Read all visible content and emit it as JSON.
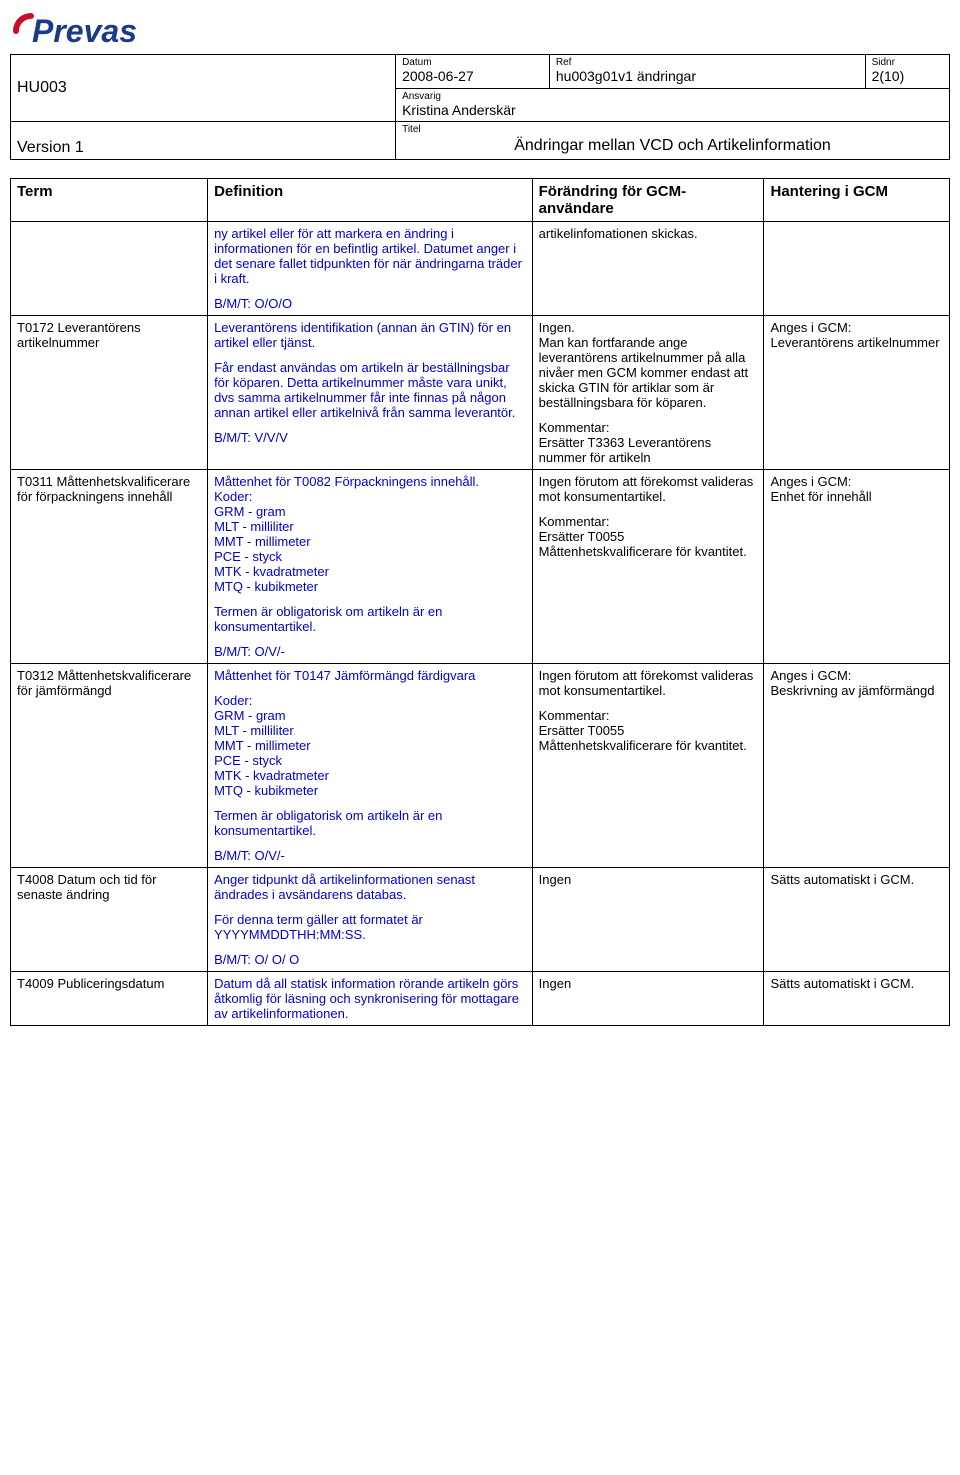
{
  "logo": {
    "text": "Prevas",
    "color": "#1a3a8a",
    "accent": "#c8102e"
  },
  "header": {
    "labels": {
      "datum": "Datum",
      "ref": "Ref",
      "sidnr": "Sidnr",
      "ansvarig": "Ansvarig",
      "titel": "Titel"
    },
    "code": "HU003",
    "datum": "2008-06-27",
    "ref": "hu003g01v1 ändringar",
    "sidnr": "2(10)",
    "ansvarig": "Kristina Anderskär",
    "version": "Version 1",
    "titel": "Ändringar mellan VCD och Artikelinformation"
  },
  "table": {
    "headers": {
      "term": "Term",
      "definition": "Definition",
      "forandring": "Förändring för GCM-användare",
      "hantering": "Hantering i GCM"
    },
    "rows": [
      {
        "term": "",
        "definition_parts": [
          "ny artikel eller för att markera en ändring i informationen för en befintlig artikel. Datumet anger i det senare fallet tidpunkten för när ändringarna träder i kraft.",
          "B/M/T: O/O/O"
        ],
        "forandring_parts": [
          "artikelinfomationen skickas."
        ],
        "hantering": ""
      },
      {
        "term": "T0172 Leverantörens artikelnummer",
        "definition_parts": [
          "Leverantörens identifikation (annan än GTIN) för en artikel eller tjänst.",
          "Får endast användas om artikeln är beställningsbar för köparen. Detta artikelnummer måste vara unikt, dvs samma artikelnummer får inte finnas på någon annan artikel eller artikelnivå från samma leverantör.",
          "B/M/T: V/V/V"
        ],
        "forandring_parts": [
          "Ingen.\nMan kan fortfarande ange leverantörens artikelnummer på alla nivåer men GCM kommer endast att skicka GTIN för artiklar som är beställningsbara för köparen.",
          "Kommentar:\nErsätter T3363 Leverantörens nummer för artikeln"
        ],
        "hantering": "Anges i GCM:\nLeverantörens artikelnummer"
      },
      {
        "term": "T0311 Måttenhetskvalificerare för förpackningens innehåll",
        "definition_parts": [
          "Måttenhet för T0082 Förpackningens innehåll.\nKoder:\nGRM - gram\nMLT - milliliter\nMMT - millimeter\nPCE - styck\nMTK - kvadratmeter\nMTQ - kubikmeter",
          "Termen är obligatorisk om artikeln är en konsumentartikel.",
          "B/M/T: O/V/-"
        ],
        "forandring_parts": [
          "Ingen förutom att förekomst valideras mot konsumentartikel.",
          "Kommentar:\nErsätter T0055 Måttenhetskvalificerare för kvantitet."
        ],
        "hantering": "Anges i GCM:\nEnhet för innehåll"
      },
      {
        "term": "T0312 Måttenhetskvalificerare för jämförmängd",
        "definition_parts": [
          "Måttenhet för T0147 Jämförmängd färdigvara",
          "Koder:\nGRM - gram\nMLT - milliliter\nMMT - millimeter\nPCE - styck\nMTK - kvadratmeter\nMTQ - kubikmeter",
          "Termen är obligatorisk om artikeln är en konsumentartikel.",
          "B/M/T: O/V/-"
        ],
        "forandring_parts": [
          "Ingen förutom att förekomst valideras mot konsumentartikel.",
          "Kommentar:\nErsätter T0055 Måttenhetskvalificerare för kvantitet."
        ],
        "hantering": "Anges i GCM:\nBeskrivning av jämförmängd"
      },
      {
        "term": "T4008 Datum och tid för senaste ändring",
        "definition_parts": [
          "Anger tidpunkt då artikelinformationen senast ändrades i avsändarens databas.",
          "För denna term gäller att formatet är YYYYMMDDTHH:MM:SS.",
          "B/M/T: O/ O/ O"
        ],
        "forandring_parts": [
          "Ingen"
        ],
        "hantering": "Sätts automatiskt i GCM."
      },
      {
        "term": "T4009 Publiceringsdatum",
        "definition_parts": [
          "Datum då all statisk information rörande artikeln görs åtkomlig för läsning och synkronisering för mottagare av artikelinformationen."
        ],
        "forandring_parts": [
          "Ingen"
        ],
        "hantering": "Sätts automatiskt i GCM."
      }
    ]
  }
}
